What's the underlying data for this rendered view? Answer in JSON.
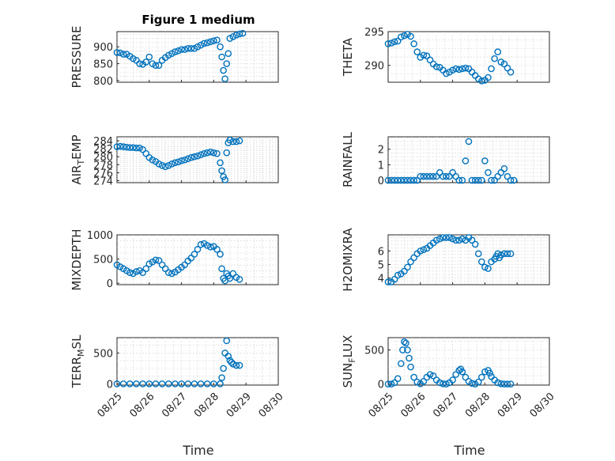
{
  "figure": {
    "title": "Figure 1 medium",
    "xlabel": "Time",
    "marker_color": "#0072BD",
    "xticks": [
      "08/25",
      "08/26",
      "08/27",
      "08/28",
      "08/29",
      "08/30"
    ]
  },
  "chart_data": [
    {
      "type": "scatter",
      "title": "Figure 1 medium",
      "ylabel": "PRESSURE",
      "ylim": [
        795,
        945
      ],
      "yticks": [
        800,
        850,
        900
      ],
      "xlim": [
        0,
        5
      ],
      "grid": true,
      "x": [
        0.0,
        0.1,
        0.2,
        0.3,
        0.4,
        0.5,
        0.6,
        0.7,
        0.8,
        0.9,
        1.0,
        1.1,
        1.2,
        1.3,
        1.4,
        1.5,
        1.6,
        1.7,
        1.8,
        1.9,
        2.0,
        2.1,
        2.2,
        2.3,
        2.4,
        2.5,
        2.6,
        2.7,
        2.8,
        2.9,
        3.0,
        3.1,
        3.2,
        3.25,
        3.3,
        3.35,
        3.4,
        3.45,
        3.5,
        3.6,
        3.7,
        3.8,
        3.9
      ],
      "y": [
        883,
        882,
        878,
        878,
        872,
        865,
        860,
        850,
        848,
        855,
        870,
        850,
        845,
        845,
        860,
        868,
        875,
        880,
        885,
        888,
        892,
        892,
        895,
        895,
        895,
        900,
        905,
        910,
        912,
        915,
        918,
        920,
        900,
        870,
        830,
        805,
        850,
        880,
        925,
        930,
        935,
        938,
        940
      ]
    },
    {
      "type": "scatter",
      "ylabel": "THETA",
      "ylim": [
        287.5,
        295
      ],
      "yticks": [
        290,
        295
      ],
      "xlim": [
        0,
        5
      ],
      "grid": true,
      "x": [
        0.0,
        0.1,
        0.2,
        0.3,
        0.4,
        0.5,
        0.6,
        0.7,
        0.8,
        0.9,
        1.0,
        1.1,
        1.2,
        1.3,
        1.4,
        1.5,
        1.6,
        1.7,
        1.8,
        1.9,
        2.0,
        2.1,
        2.2,
        2.3,
        2.4,
        2.5,
        2.6,
        2.7,
        2.8,
        2.9,
        3.0,
        3.1,
        3.2,
        3.3,
        3.4,
        3.5,
        3.6,
        3.7,
        3.8
      ],
      "y": [
        293.2,
        293.3,
        293.5,
        293.6,
        294.2,
        294.4,
        294.6,
        294.3,
        293.2,
        292.0,
        291.2,
        291.5,
        291.4,
        290.8,
        290.2,
        289.8,
        289.7,
        289.3,
        288.8,
        289.0,
        289.3,
        289.5,
        289.4,
        289.5,
        289.6,
        289.5,
        289.0,
        288.5,
        288.0,
        287.7,
        287.8,
        288.2,
        289.5,
        291.0,
        292.0,
        290.5,
        290.2,
        289.6,
        289.0
      ]
    },
    {
      "type": "scatter",
      "ylabel": "AIR_TEMP",
      "ylim": [
        273.5,
        285
      ],
      "yticks": [
        274,
        276,
        278,
        280,
        282,
        284
      ],
      "xlim": [
        0,
        5
      ],
      "grid": true,
      "x": [
        0.0,
        0.1,
        0.2,
        0.3,
        0.4,
        0.5,
        0.6,
        0.7,
        0.8,
        0.9,
        1.0,
        1.1,
        1.2,
        1.3,
        1.4,
        1.5,
        1.6,
        1.7,
        1.8,
        1.9,
        2.0,
        2.1,
        2.2,
        2.3,
        2.4,
        2.5,
        2.6,
        2.7,
        2.8,
        2.9,
        3.0,
        3.1,
        3.2,
        3.25,
        3.3,
        3.35,
        3.4,
        3.45,
        3.5,
        3.6,
        3.7,
        3.8
      ],
      "y": [
        282.5,
        282.6,
        282.5,
        282.4,
        282.3,
        282.3,
        282.2,
        282.2,
        281.8,
        280.8,
        279.8,
        279.2,
        278.8,
        278.2,
        277.8,
        277.5,
        277.8,
        278.2,
        278.5,
        278.7,
        279.0,
        279.2,
        279.5,
        279.8,
        280.0,
        280.2,
        280.5,
        280.8,
        281.0,
        281.2,
        281.0,
        280.8,
        278.5,
        276.5,
        275.0,
        274.2,
        281.0,
        283.5,
        284.2,
        283.8,
        283.8,
        284.0
      ]
    },
    {
      "type": "scatter",
      "ylabel": "RAINFALL",
      "ylim": [
        -0.15,
        2.8
      ],
      "yticks": [
        0,
        1,
        2
      ],
      "xlim": [
        0,
        5
      ],
      "grid": true,
      "x": [
        0.0,
        0.1,
        0.2,
        0.3,
        0.4,
        0.5,
        0.6,
        0.7,
        0.8,
        0.9,
        1.0,
        1.1,
        1.2,
        1.3,
        1.4,
        1.5,
        1.6,
        1.7,
        1.8,
        1.9,
        2.0,
        2.1,
        2.2,
        2.3,
        2.4,
        2.5,
        2.6,
        2.7,
        2.8,
        2.9,
        3.0,
        3.1,
        3.2,
        3.3,
        3.4,
        3.5,
        3.6,
        3.7,
        3.8,
        3.9
      ],
      "y": [
        0,
        0,
        0,
        0,
        0,
        0,
        0,
        0,
        0,
        0,
        0.25,
        0.25,
        0.25,
        0.25,
        0.25,
        0.25,
        0.5,
        0.25,
        0.25,
        0.25,
        0.5,
        0.25,
        0,
        0,
        1.25,
        2.5,
        0,
        0,
        0,
        0,
        1.25,
        0.5,
        0,
        0,
        0.25,
        0.5,
        0.75,
        0.25,
        0,
        0
      ]
    },
    {
      "type": "scatter",
      "ylabel": "MIXDEPTH",
      "ylim": [
        -30,
        1000
      ],
      "yticks": [
        0,
        500,
        1000
      ],
      "xlim": [
        0,
        5
      ],
      "grid": true,
      "x": [
        0.0,
        0.1,
        0.2,
        0.3,
        0.4,
        0.5,
        0.6,
        0.7,
        0.8,
        0.9,
        1.0,
        1.1,
        1.2,
        1.3,
        1.4,
        1.5,
        1.6,
        1.7,
        1.8,
        1.9,
        2.0,
        2.1,
        2.2,
        2.3,
        2.4,
        2.5,
        2.6,
        2.7,
        2.8,
        2.9,
        3.0,
        3.1,
        3.2,
        3.25,
        3.3,
        3.35,
        3.4,
        3.45,
        3.5,
        3.6,
        3.7,
        3.8
      ],
      "y": [
        380,
        340,
        300,
        260,
        220,
        200,
        240,
        260,
        220,
        300,
        400,
        440,
        480,
        470,
        380,
        300,
        220,
        200,
        230,
        280,
        330,
        380,
        460,
        520,
        600,
        700,
        800,
        820,
        780,
        750,
        760,
        700,
        600,
        300,
        100,
        50,
        200,
        150,
        100,
        200,
        120,
        80
      ]
    },
    {
      "type": "scatter",
      "ylabel": "H2OMIXRA",
      "ylim": [
        3.5,
        7.2
      ],
      "yticks": [
        4,
        5,
        6
      ],
      "xlim": [
        0,
        5
      ],
      "grid": true,
      "x": [
        0.0,
        0.1,
        0.2,
        0.3,
        0.4,
        0.5,
        0.6,
        0.7,
        0.8,
        0.9,
        1.0,
        1.1,
        1.2,
        1.3,
        1.4,
        1.5,
        1.6,
        1.7,
        1.8,
        1.9,
        2.0,
        2.1,
        2.2,
        2.3,
        2.4,
        2.5,
        2.6,
        2.7,
        2.8,
        2.9,
        3.0,
        3.1,
        3.2,
        3.3,
        3.35,
        3.4,
        3.45,
        3.5,
        3.6,
        3.7,
        3.8
      ],
      "y": [
        3.7,
        3.7,
        3.9,
        4.2,
        4.3,
        4.5,
        4.8,
        5.2,
        5.5,
        5.8,
        6.0,
        6.1,
        6.2,
        6.4,
        6.6,
        6.8,
        6.9,
        7.0,
        7.0,
        7.0,
        6.9,
        6.8,
        6.8,
        6.9,
        6.8,
        7.0,
        6.8,
        6.5,
        5.8,
        5.2,
        4.8,
        4.7,
        5.2,
        5.4,
        5.6,
        5.8,
        5.5,
        5.7,
        5.8,
        5.8,
        5.8
      ]
    },
    {
      "type": "scatter",
      "ylabel": "TERR_MSL",
      "ylim": [
        -20,
        750
      ],
      "yticks": [
        0,
        500
      ],
      "xlim": [
        0,
        5
      ],
      "grid": true,
      "x": [
        0.0,
        0.2,
        0.4,
        0.6,
        0.8,
        1.0,
        1.2,
        1.4,
        1.6,
        1.8,
        2.0,
        2.2,
        2.4,
        2.6,
        2.8,
        3.0,
        3.2,
        3.25,
        3.3,
        3.35,
        3.4,
        3.45,
        3.5,
        3.55,
        3.6,
        3.7,
        3.8
      ],
      "y": [
        0,
        0,
        0,
        0,
        0,
        0,
        0,
        0,
        0,
        0,
        0,
        0,
        0,
        0,
        0,
        0,
        0,
        100,
        250,
        500,
        700,
        450,
        380,
        350,
        320,
        300,
        300
      ]
    },
    {
      "type": "scatter",
      "ylabel": "SUN_FLUX",
      "ylim": [
        -15,
        680
      ],
      "yticks": [
        0,
        500
      ],
      "xlim": [
        0,
        5
      ],
      "grid": true,
      "x": [
        0.0,
        0.1,
        0.2,
        0.3,
        0.4,
        0.45,
        0.5,
        0.55,
        0.6,
        0.65,
        0.7,
        0.8,
        0.9,
        1.0,
        1.1,
        1.2,
        1.3,
        1.4,
        1.5,
        1.6,
        1.7,
        1.8,
        1.9,
        2.0,
        2.1,
        2.2,
        2.25,
        2.3,
        2.4,
        2.5,
        2.6,
        2.7,
        2.8,
        2.9,
        3.0,
        3.1,
        3.15,
        3.2,
        3.3,
        3.4,
        3.5,
        3.6,
        3.7,
        3.8
      ],
      "y": [
        0,
        0,
        20,
        80,
        300,
        500,
        620,
        600,
        500,
        380,
        250,
        100,
        30,
        5,
        40,
        100,
        140,
        120,
        60,
        20,
        5,
        0,
        20,
        60,
        140,
        200,
        220,
        180,
        100,
        40,
        10,
        0,
        30,
        100,
        180,
        200,
        160,
        110,
        60,
        20,
        5,
        0,
        0,
        0
      ]
    }
  ]
}
